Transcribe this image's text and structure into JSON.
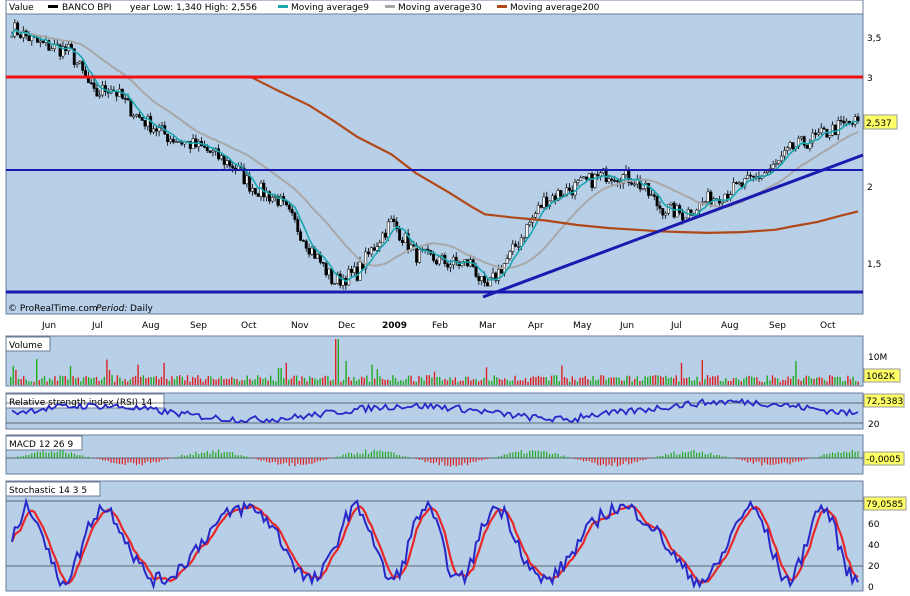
{
  "main_panel": {
    "header": {
      "value_label": "Value",
      "instrument": "BANCO BPI",
      "range_text": "year Low: 1,340 High: 2,556",
      "ma9_label": "Moving average9",
      "ma30_label": "Moving average30",
      "ma200_label": "Moving average200"
    },
    "watermark": "© ProRealTime.com",
    "period_prefix": "Period:",
    "period_value": "Daily",
    "last_price": "2,537",
    "y_ticks": [
      "3,5",
      "3",
      "2",
      "1,5"
    ],
    "x_ticks": [
      "Jun",
      "Jul",
      "Aug",
      "Sep",
      "Oct",
      "Nov",
      "Dec",
      "2009",
      "Feb",
      "Mar",
      "Apr",
      "May",
      "Jun",
      "Jul",
      "Aug",
      "Sep",
      "Oct"
    ]
  },
  "volume_panel": {
    "title": "Volume",
    "y_tick": "10M",
    "last_value": "1062K"
  },
  "rsi_panel": {
    "title": "Relative strength index (RSI) 14",
    "y_tick": "20",
    "last_value": "72,5383"
  },
  "macd_panel": {
    "title": "MACD 12 26 9",
    "last_value": "-0,0005"
  },
  "stoch_panel": {
    "title": "Stochastic 14 3 5",
    "y_ticks": [
      "60",
      "40",
      "20",
      "0"
    ],
    "last_value": "79,0585"
  },
  "colors": {
    "panel_bg": "#b8cfe8",
    "ma9": "#19a8b0",
    "ma30": "#a8a8a8",
    "ma200": "#b04818",
    "red_level": "#ee1111",
    "blue_lines": "#1a1ab0",
    "stoch_k": "#2828c8",
    "stoch_d": "#e82828"
  },
  "chart_data": [
    {
      "type": "line",
      "title": "BANCO BPI",
      "x": [
        "2008-05-20",
        "2008-06-05",
        "2008-06-25",
        "2008-07-10",
        "2008-07-20",
        "2008-08-05",
        "2008-08-25",
        "2008-09-15",
        "2008-10-05",
        "2008-10-15",
        "2008-11-01",
        "2008-11-20",
        "2008-12-05",
        "2008-12-20",
        "2009-01-10",
        "2009-01-25",
        "2009-02-15",
        "2009-03-01",
        "2009-03-09",
        "2009-03-25",
        "2009-04-15",
        "2009-05-05",
        "2009-05-25",
        "2009-06-10",
        "2009-06-25",
        "2009-07-10",
        "2009-07-25",
        "2009-08-15",
        "2009-09-05",
        "2009-09-15",
        "2009-10-01",
        "2009-10-15",
        "2009-10-26"
      ],
      "series": [
        {
          "name": "BANCO BPI",
          "values": [
            3.6,
            3.4,
            3.3,
            2.8,
            2.9,
            2.6,
            2.4,
            2.3,
            2.15,
            2.0,
            1.9,
            1.6,
            1.4,
            1.45,
            1.75,
            1.55,
            1.5,
            1.5,
            1.35,
            1.55,
            1.9,
            2.0,
            2.1,
            2.05,
            1.85,
            1.8,
            1.9,
            2.0,
            2.15,
            2.3,
            2.4,
            2.5,
            2.537
          ]
        },
        {
          "name": "Moving average200",
          "values": [
            null,
            null,
            null,
            null,
            null,
            null,
            null,
            null,
            null,
            3.0,
            2.85,
            2.7,
            2.55,
            2.4,
            2.25,
            2.1,
            1.95,
            1.85,
            1.8,
            1.78,
            1.76,
            1.73,
            1.71,
            1.7,
            1.69,
            1.685,
            1.68,
            1.685,
            1.7,
            1.72,
            1.75,
            1.79,
            1.82
          ]
        }
      ],
      "horizontal_lines": [
        3.0,
        2.1,
        1.3
      ],
      "trendlines": [
        {
          "from": [
            "2009-03-09",
            1.3
          ],
          "to": [
            "2009-10-26",
            2.2
          ]
        }
      ],
      "ylim": [
        1.3,
        3.66
      ],
      "y_scale": "log",
      "legend": "top"
    },
    {
      "type": "bar",
      "title": "Volume",
      "last_value": 1062000,
      "peak_month": "2008-12"
    },
    {
      "type": "line",
      "title": "Relative strength index (RSI) 14",
      "last_value": 72.5383
    },
    {
      "type": "bar",
      "title": "MACD 12 26 9",
      "last_value": -0.0005
    },
    {
      "type": "line",
      "title": "Stochastic 14 3 5",
      "ylim": [
        0,
        100
      ],
      "last_value": 79.0585
    }
  ]
}
